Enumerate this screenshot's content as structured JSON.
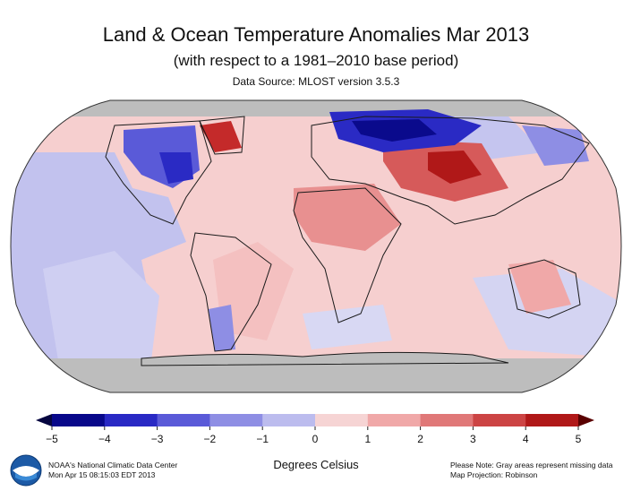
{
  "header": {
    "title": "Land & Ocean Temperature Anomalies Mar 2013",
    "subtitle": "(with respect to a 1981–2010 base period)",
    "source": "Data Source: MLOST version 3.5.3"
  },
  "map": {
    "projection": "Robinson",
    "missing_color": "#bdbdbd",
    "land_outline_color": "#1a1a1a",
    "anomaly_regions": [
      {
        "region": "Northern Europe & Western Russia",
        "anomaly_c": -4.5
      },
      {
        "region": "Eastern Canada / Hudson Bay",
        "anomaly_c": -3
      },
      {
        "region": "Eastern United States",
        "anomaly_c": -2
      },
      {
        "region": "Greenland",
        "anomaly_c": 4.5
      },
      {
        "region": "Central Asia / Kazakhstan",
        "anomaly_c": 4.5
      },
      {
        "region": "Sahara & Middle East",
        "anomaly_c": 2
      },
      {
        "region": "East Siberia",
        "anomaly_c": -2
      },
      {
        "region": "Australia",
        "anomaly_c": 1.5
      },
      {
        "region": "Southern South America",
        "anomaly_c": -1.5
      },
      {
        "region": "Tropical Oceans",
        "anomaly_c": 0.8
      }
    ]
  },
  "colorbar": {
    "ticks": [
      "−5",
      "−4",
      "−3",
      "−2",
      "−1",
      "0",
      "1",
      "2",
      "3",
      "4",
      "5"
    ],
    "label": "Degrees Celsius",
    "colors": [
      "#08088a",
      "#2929c4",
      "#5a5ad8",
      "#8e8ee4",
      "#bcbcee",
      "#f6d4d4",
      "#f0a8a8",
      "#e07878",
      "#cc4444",
      "#b01818"
    ],
    "end_low": "#060640",
    "end_high": "#5a0000"
  },
  "footer": {
    "agency": "NOAA's National Climatic Data Center",
    "timestamp": "Mon Apr 15 08:15:03 EDT 2013",
    "note": "Please Note: Gray areas represent missing data",
    "projection_note": "Map Projection: Robinson",
    "logo_text": "NOAA"
  }
}
